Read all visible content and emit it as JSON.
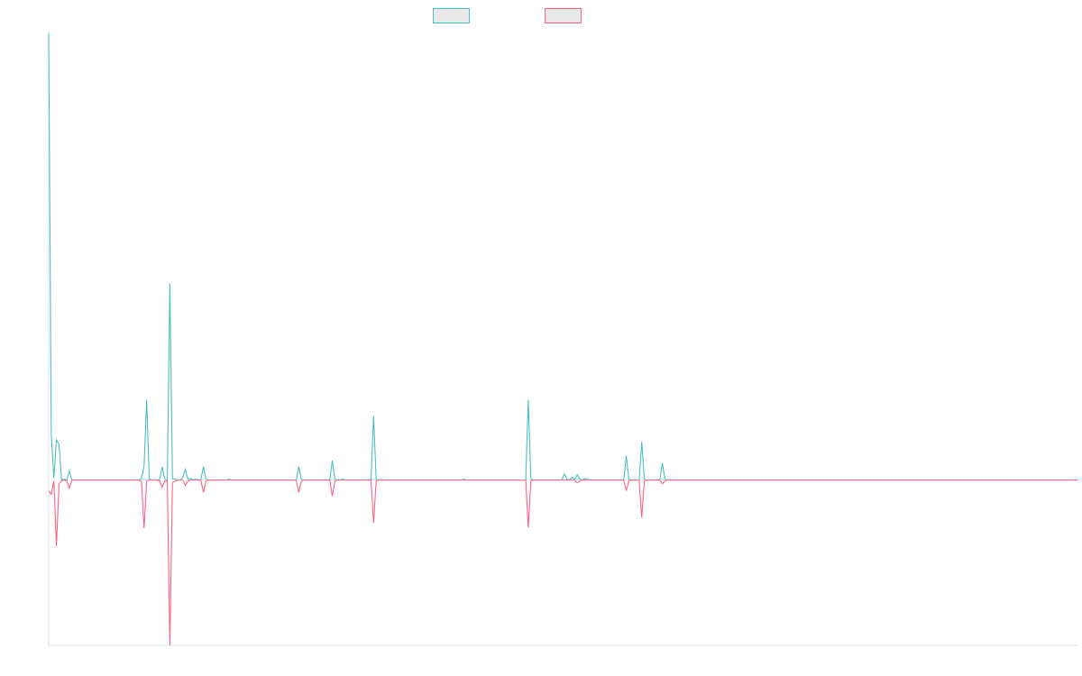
{
  "chart_data": {
    "type": "line",
    "title": "",
    "xlabel": "",
    "ylabel": "",
    "grid": false,
    "legend_placement": "top-center",
    "colors": {
      "series_1": "#4bc0c0",
      "series_2": "#ff6384",
      "legend_fill": "#e8e8e8",
      "axis": "#e0e0e0"
    },
    "x_count": 400,
    "ylim": [
      -18.5,
      50
    ],
    "series": [
      {
        "name": "",
        "color": "#4bc0c0",
        "values": {
          "0": 50,
          "1": 5,
          "2": 0.2,
          "3": 4.5,
          "4": 4,
          "6": 0.1,
          "8": 1,
          "36": 0.2,
          "37": 1.6,
          "38": 9,
          "39": 0.1,
          "44": 1.5,
          "45": 0.1,
          "47": 22,
          "48": 0.1,
          "49": 0.1,
          "52": 0.3,
          "53": 1.2,
          "54": 0.1,
          "55": 0.2,
          "57": 0.1,
          "60": 1.5,
          "61": 0.1,
          "70": 0.1,
          "97": 1.5,
          "98": 0.1,
          "110": 2.2,
          "111": 0.1,
          "114": 0.1,
          "126": 7.2,
          "127": 0.1,
          "161": 0.1,
          "186": 9,
          "187": 0.1,
          "200": 0.7,
          "201": 0.1,
          "203": 0.3,
          "204": 0.1,
          "205": 0.6,
          "206": 0.1,
          "208": 0.2,
          "209": 0.1,
          "224": 2.7,
          "225": 0.1,
          "230": 4.3,
          "231": 0.1,
          "238": 1.9,
          "239": 0.1
        }
      },
      {
        "name": "",
        "color": "#ff6384",
        "values": {
          "0": -1.2,
          "1": -1.6,
          "2": -0.1,
          "3": -7.4,
          "4": -0.4,
          "5": -0.1,
          "7": -0.1,
          "8": -0.9,
          "36": -0.2,
          "37": -5.4,
          "38": -0.1,
          "43": -0.1,
          "44": -0.8,
          "45": -0.1,
          "46": -0.1,
          "47": -18.5,
          "48": -0.3,
          "49": -0.1,
          "53": -0.6,
          "54": -0.1,
          "60": -1.4,
          "61": -0.1,
          "97": -1.4,
          "98": -0.1,
          "110": -1.8,
          "111": -0.1,
          "126": -4.8,
          "127": -0.1,
          "186": -5.3,
          "187": -0.1,
          "205": -0.3,
          "206": -0.1,
          "224": -1.2,
          "225": -0.1,
          "230": -4.2,
          "231": -0.1,
          "238": -0.4,
          "239": -0.1
        }
      }
    ]
  }
}
